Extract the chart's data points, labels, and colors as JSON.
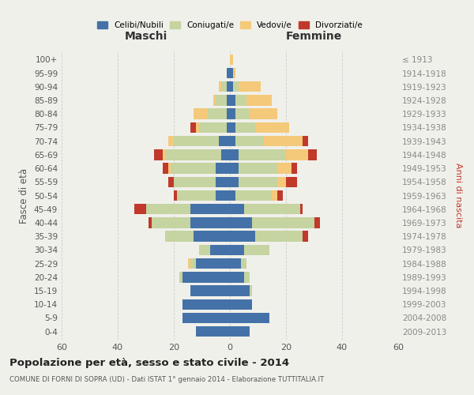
{
  "age_groups": [
    "0-4",
    "5-9",
    "10-14",
    "15-19",
    "20-24",
    "25-29",
    "30-34",
    "35-39",
    "40-44",
    "45-49",
    "50-54",
    "55-59",
    "60-64",
    "65-69",
    "70-74",
    "75-79",
    "80-84",
    "85-89",
    "90-94",
    "95-99",
    "100+"
  ],
  "birth_years": [
    "2009-2013",
    "2004-2008",
    "1999-2003",
    "1994-1998",
    "1989-1993",
    "1984-1988",
    "1979-1983",
    "1974-1978",
    "1969-1973",
    "1964-1968",
    "1959-1963",
    "1954-1958",
    "1949-1953",
    "1944-1948",
    "1939-1943",
    "1934-1938",
    "1929-1933",
    "1924-1928",
    "1919-1923",
    "1914-1918",
    "≤ 1913"
  ],
  "male": {
    "celibi": [
      12,
      17,
      17,
      14,
      17,
      12,
      7,
      13,
      14,
      14,
      5,
      5,
      5,
      3,
      4,
      1,
      1,
      1,
      1,
      1,
      0
    ],
    "coniugati": [
      0,
      0,
      0,
      0,
      1,
      2,
      4,
      10,
      14,
      16,
      14,
      15,
      16,
      20,
      16,
      10,
      7,
      4,
      2,
      0,
      0
    ],
    "vedovi": [
      0,
      0,
      0,
      0,
      0,
      1,
      0,
      0,
      0,
      0,
      0,
      0,
      1,
      1,
      2,
      1,
      5,
      1,
      1,
      0,
      0
    ],
    "divorziati": [
      0,
      0,
      0,
      0,
      0,
      0,
      0,
      0,
      1,
      4,
      1,
      2,
      2,
      3,
      0,
      2,
      0,
      0,
      0,
      0,
      0
    ]
  },
  "female": {
    "nubili": [
      7,
      14,
      8,
      7,
      5,
      4,
      5,
      9,
      8,
      5,
      2,
      3,
      3,
      3,
      2,
      2,
      2,
      2,
      1,
      1,
      0
    ],
    "coniugate": [
      0,
      0,
      0,
      1,
      2,
      2,
      9,
      17,
      22,
      20,
      13,
      14,
      14,
      17,
      10,
      7,
      5,
      4,
      2,
      0,
      0
    ],
    "vedove": [
      0,
      0,
      0,
      0,
      0,
      0,
      0,
      0,
      0,
      0,
      2,
      3,
      5,
      8,
      14,
      12,
      10,
      9,
      8,
      1,
      1
    ],
    "divorziate": [
      0,
      0,
      0,
      0,
      0,
      0,
      0,
      2,
      2,
      1,
      2,
      4,
      2,
      3,
      2,
      0,
      0,
      0,
      0,
      0,
      0
    ]
  },
  "colors": {
    "celibi": "#4472a8",
    "coniugati": "#c5d4a0",
    "vedovi": "#f5c97a",
    "divorziati": "#c0392b"
  },
  "title": "Popolazione per età, sesso e stato civile - 2014",
  "subtitle": "COMUNE DI FORNI DI SOPRA (UD) - Dati ISTAT 1° gennaio 2014 - Elaborazione TUTTITALIA.IT",
  "xlabel_left": "Maschi",
  "xlabel_right": "Femmine",
  "ylabel_left": "Fasce di età",
  "ylabel_right": "Anni di nascita",
  "xlim": 60,
  "bg_color": "#f0f0eb",
  "legend_labels": [
    "Celibi/Nubili",
    "Coniugati/e",
    "Vedovi/e",
    "Divorziati/e"
  ]
}
